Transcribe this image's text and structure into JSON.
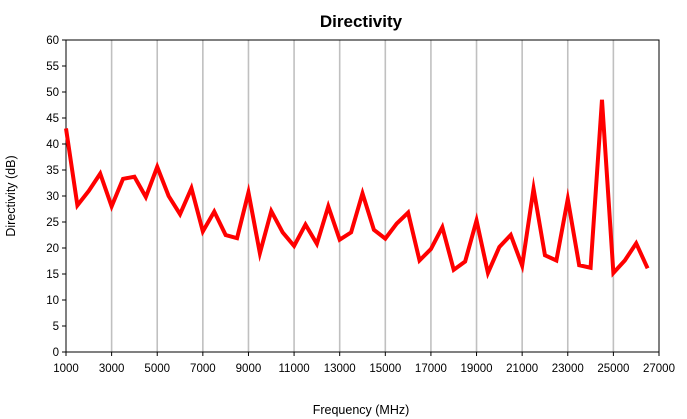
{
  "chart_data": {
    "type": "line",
    "title": "Directivity",
    "xlabel": "Frequency (MHz)",
    "ylabel": "Directivity (dB)",
    "xlim": [
      1000,
      27000
    ],
    "ylim": [
      0,
      60
    ],
    "x_ticks": [
      1000,
      3000,
      5000,
      7000,
      9000,
      11000,
      13000,
      15000,
      17000,
      19000,
      21000,
      23000,
      25000,
      27000
    ],
    "y_ticks": [
      0,
      5,
      10,
      15,
      20,
      25,
      30,
      35,
      40,
      45,
      50,
      55,
      60
    ],
    "grid": "vertical",
    "legend": "none",
    "colors": {
      "line": "#ff0000",
      "grid": "#c0c0c0",
      "axis": "#000000"
    },
    "series": [
      {
        "x": [
          1000,
          1500,
          2000,
          2500,
          3000,
          3500,
          4000,
          4500,
          5000,
          5500,
          6000,
          6500,
          7000,
          7500,
          8000,
          8500,
          9000,
          9500,
          10000,
          10500,
          11000,
          11500,
          12000,
          12500,
          13000,
          13500,
          14000,
          14500,
          15000,
          15500,
          16000,
          16500,
          17000,
          17500,
          18000,
          18500,
          19000,
          19500,
          20000,
          20500,
          21000,
          21500,
          22000,
          22500,
          23000,
          23500,
          24000,
          24500,
          25000,
          25500,
          26000,
          26500
        ],
        "values": [
          43,
          28.2,
          31,
          34.3,
          28,
          33.3,
          33.7,
          29.8,
          35.6,
          30,
          26.5,
          31.5,
          23.2,
          27,
          22.5,
          21.9,
          30.7,
          19,
          27.1,
          23,
          20.4,
          24.5,
          20.8,
          28,
          21.6,
          23,
          30.5,
          23.5,
          21.8,
          24.7,
          26.8,
          17.6,
          19.8,
          24,
          15.8,
          17.4,
          25.3,
          15.2,
          20.2,
          22.5,
          16.6,
          31.4,
          18.6,
          17.6,
          29.4,
          16.7,
          16.2,
          48.5,
          15.2,
          17.6,
          20.9,
          16.1
        ]
      }
    ]
  }
}
